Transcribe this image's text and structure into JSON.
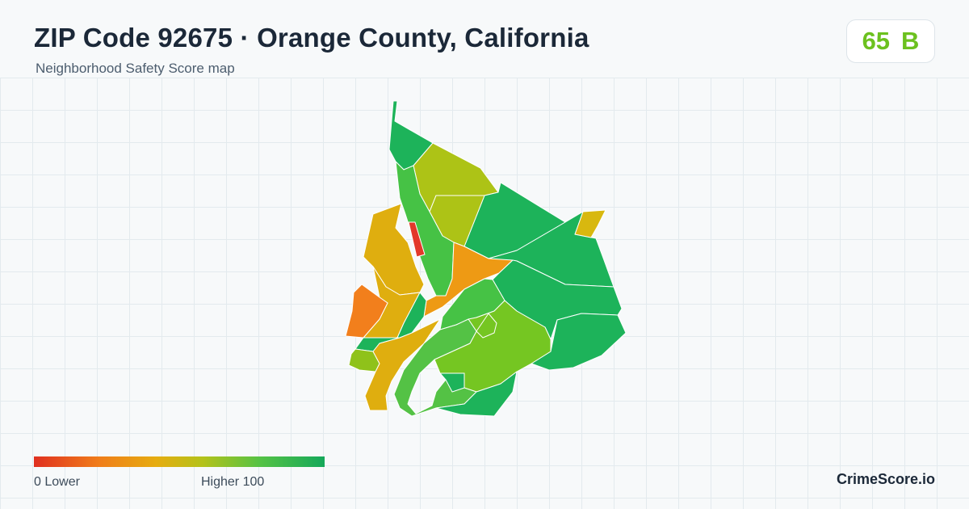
{
  "header": {
    "title": "ZIP Code 92675 · Orange County, California",
    "subtitle": "Neighborhood Safety Score map"
  },
  "score": {
    "value": "65",
    "grade": "B",
    "color": "#6cc11f"
  },
  "legend": {
    "min_label": "0  Lower",
    "max_label": "Higher  100",
    "colors": [
      "#e03020",
      "#f07c1a",
      "#e6ac10",
      "#b4c21a",
      "#54c245",
      "#15a85a"
    ]
  },
  "brand": "CrimeScore.io"
}
